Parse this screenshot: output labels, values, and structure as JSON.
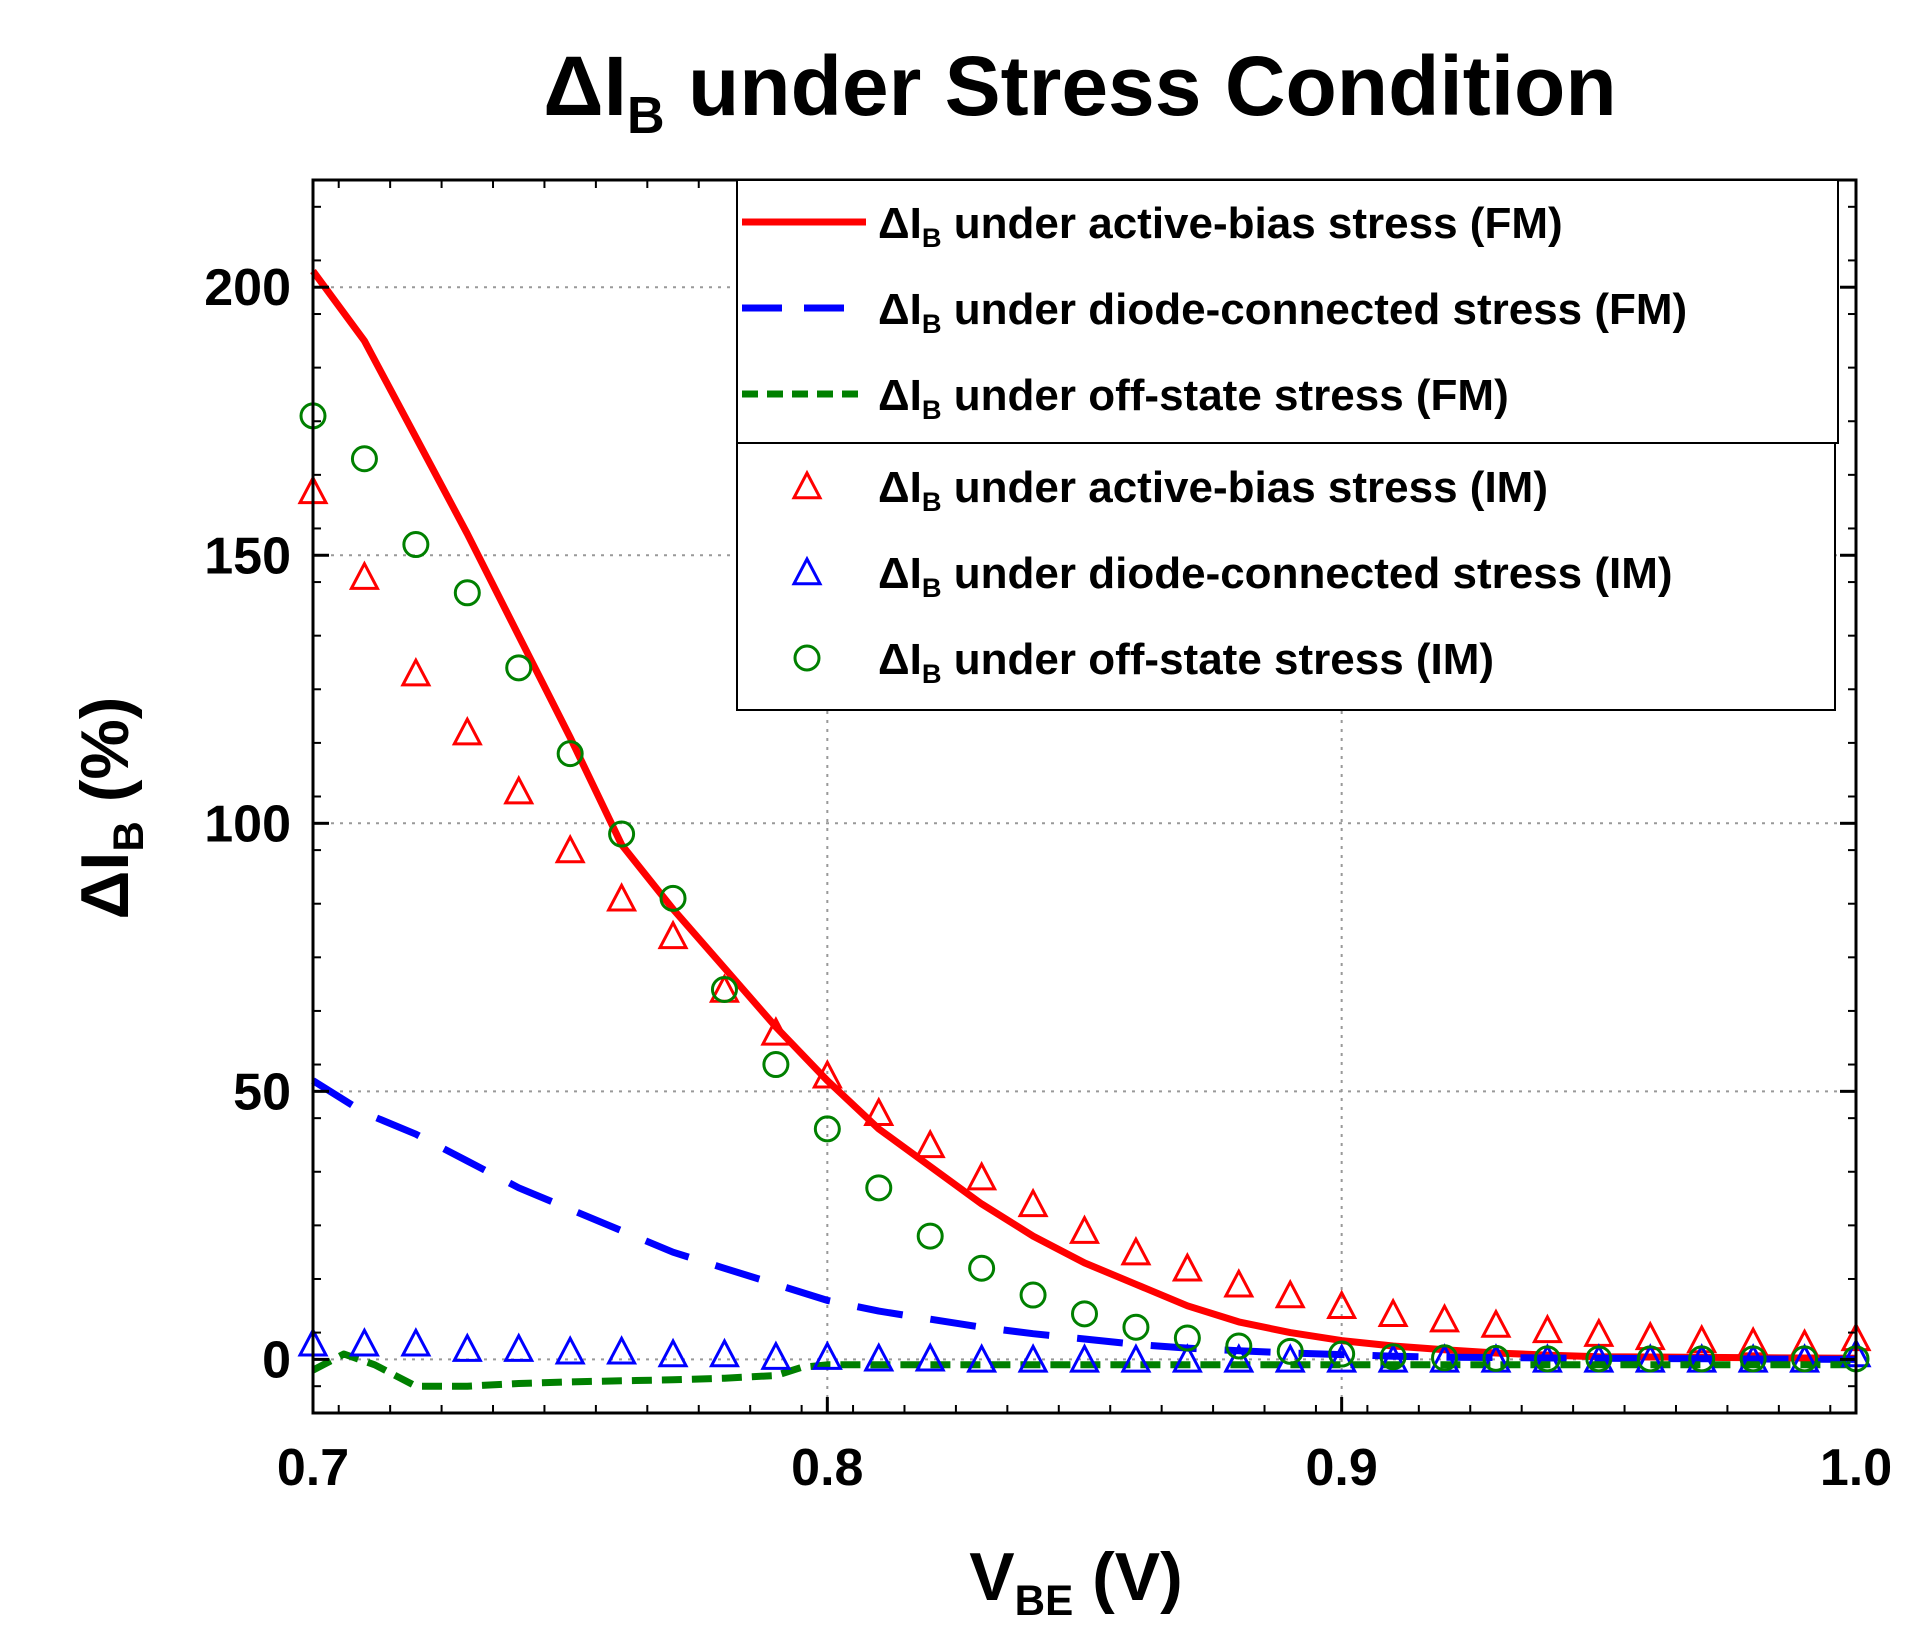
{
  "chart_data": {
    "type": "line",
    "title": {
      "prefix": "ΔI",
      "sub": "B",
      "suffix": " under Stress Condition"
    },
    "xlabel": {
      "prefix": "V",
      "sub": "BE",
      "suffix": " (V)"
    },
    "ylabel": {
      "prefix": "ΔI",
      "sub": "B",
      "suffix": " (%)"
    },
    "xlim": [
      0.7,
      1.0
    ],
    "ylim": [
      -10,
      220
    ],
    "xticks": [
      "0.7",
      "0.8",
      "0.9",
      "1.0"
    ],
    "yticks": [
      "0",
      "50",
      "100",
      "150",
      "200"
    ],
    "grid": true,
    "legend_position": "top-right",
    "colors": {
      "red": "#ff0000",
      "blue": "#0000ff",
      "green": "#008000"
    },
    "series_lines": [
      {
        "name": "ΔIB under active-bias stress (FM)",
        "label_prefix": "ΔI",
        "label_sub": "B",
        "label_suffix": " under active-bias stress (FM)",
        "style": "solid",
        "color": "#ff0000",
        "x": [
          0.7,
          0.71,
          0.72,
          0.73,
          0.74,
          0.75,
          0.76,
          0.77,
          0.78,
          0.79,
          0.8,
          0.81,
          0.82,
          0.83,
          0.84,
          0.85,
          0.86,
          0.87,
          0.88,
          0.89,
          0.9,
          0.91,
          0.92,
          0.93,
          0.94,
          0.95,
          1.0
        ],
        "y": [
          203,
          190,
          172,
          154,
          135,
          116,
          96,
          84,
          73,
          62,
          52,
          43,
          36,
          29,
          23,
          18,
          14,
          10,
          7,
          5,
          3.5,
          2.5,
          1.8,
          1.2,
          0.8,
          0.5,
          0.2
        ]
      },
      {
        "name": "ΔIB under diode-connected stress (FM)",
        "label_prefix": "ΔI",
        "label_sub": "B",
        "label_suffix": " under diode-connected stress (FM)",
        "style": "dashed",
        "color": "#0000ff",
        "x": [
          0.7,
          0.71,
          0.72,
          0.73,
          0.74,
          0.75,
          0.76,
          0.77,
          0.78,
          0.79,
          0.8,
          0.81,
          0.82,
          0.83,
          0.84,
          0.85,
          0.86,
          0.87,
          0.88,
          0.89,
          0.9,
          0.91,
          0.92,
          0.95,
          1.0
        ],
        "y": [
          52,
          46,
          42,
          37,
          32,
          28,
          24,
          20,
          17,
          14,
          11,
          9,
          7.5,
          6,
          4.8,
          3.8,
          2.8,
          2.1,
          1.6,
          1.2,
          0.9,
          0.6,
          0.4,
          0.2,
          0
        ]
      },
      {
        "name": "ΔIB under off-state stress (FM)",
        "label_prefix": "ΔI",
        "label_sub": "B",
        "label_suffix": " under off-state stress (FM)",
        "style": "dotted",
        "color": "#008000",
        "x": [
          0.7,
          0.706,
          0.712,
          0.72,
          0.73,
          0.74,
          0.75,
          0.76,
          0.77,
          0.78,
          0.79,
          0.795,
          0.8,
          0.85,
          0.9,
          1.0
        ],
        "y": [
          -2,
          1,
          -1,
          -5,
          -5,
          -4.5,
          -4.2,
          -4,
          -3.8,
          -3.5,
          -3,
          -1.5,
          -1,
          -1,
          -1,
          -1
        ]
      }
    ],
    "series_markers": [
      {
        "name": "ΔIB under active-bias stress (IM)",
        "label_prefix": "ΔI",
        "label_sub": "B",
        "label_suffix": " under active-bias stress (IM)",
        "marker": "triangle",
        "color": "#ff0000",
        "x": [
          0.7,
          0.71,
          0.72,
          0.73,
          0.74,
          0.75,
          0.76,
          0.77,
          0.78,
          0.79,
          0.8,
          0.81,
          0.82,
          0.83,
          0.84,
          0.85,
          0.86,
          0.87,
          0.88,
          0.89,
          0.9,
          0.91,
          0.92,
          0.93,
          0.94,
          0.95,
          0.96,
          0.97,
          0.98,
          0.99,
          1.0
        ],
        "y": [
          162,
          146,
          128,
          117,
          106,
          95,
          86,
          79,
          69,
          61,
          53,
          46,
          40,
          34,
          29,
          24,
          20,
          17,
          14,
          12,
          10,
          8.5,
          7.5,
          6.5,
          5.5,
          4.8,
          4.2,
          3.6,
          3.2,
          2.8,
          4
        ]
      },
      {
        "name": "ΔIB under diode-connected stress (IM)",
        "label_prefix": "ΔI",
        "label_sub": "B",
        "label_suffix": " under diode-connected stress (IM)",
        "marker": "triangle",
        "color": "#0000ff",
        "x": [
          0.7,
          0.71,
          0.72,
          0.73,
          0.74,
          0.75,
          0.76,
          0.77,
          0.78,
          0.79,
          0.8,
          0.81,
          0.82,
          0.83,
          0.84,
          0.85,
          0.86,
          0.87,
          0.88,
          0.89,
          0.9,
          0.91,
          0.92,
          0.93,
          0.94,
          0.95,
          0.96,
          0.97,
          0.98,
          0.99,
          1.0
        ],
        "y": [
          3,
          3,
          3,
          2,
          2,
          1.5,
          1.5,
          1,
          1,
          0.5,
          0.5,
          0.2,
          0.2,
          0,
          0,
          0,
          0,
          0,
          0,
          0,
          0,
          0,
          0,
          0,
          0,
          0,
          0,
          0,
          0,
          0,
          1
        ]
      },
      {
        "name": "ΔIB under off-state stress (IM)",
        "label_prefix": "ΔI",
        "label_sub": "B",
        "label_suffix": " under off-state stress (IM)",
        "marker": "circle",
        "color": "#008000",
        "x": [
          0.7,
          0.71,
          0.72,
          0.73,
          0.74,
          0.75,
          0.76,
          0.77,
          0.78,
          0.79,
          0.8,
          0.81,
          0.82,
          0.83,
          0.84,
          0.85,
          0.86,
          0.87,
          0.88,
          0.89,
          0.9,
          0.91,
          0.92,
          0.93,
          0.94,
          0.95,
          0.96,
          0.97,
          0.98,
          0.99,
          1.0
        ],
        "y": [
          176,
          168,
          152,
          143,
          129,
          113,
          98,
          86,
          69,
          55,
          43,
          32,
          23,
          17,
          12,
          8.5,
          6,
          4,
          2.5,
          1.5,
          1,
          0.5,
          0.3,
          0.2,
          0.1,
          0.1,
          0.1,
          0.1,
          0.1,
          0.1,
          0.1
        ]
      }
    ]
  }
}
